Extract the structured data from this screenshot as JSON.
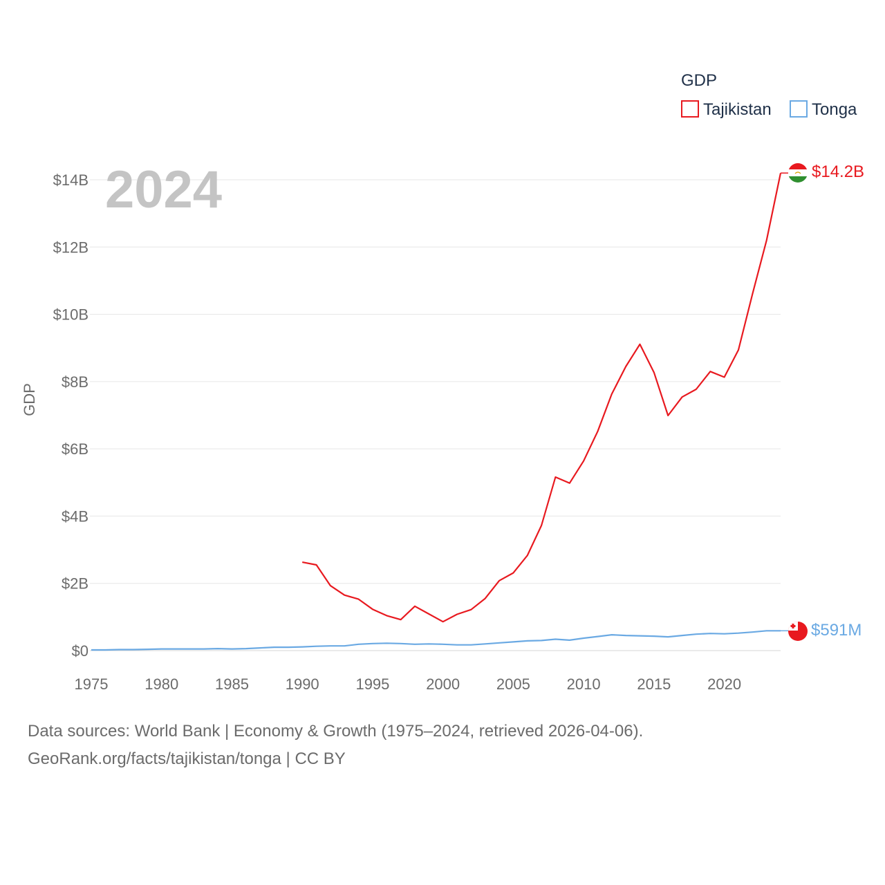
{
  "chart_data": {
    "type": "line",
    "title": "",
    "year_label": "2024",
    "ylabel": "GDP",
    "xlabel": "",
    "xlim": [
      1975,
      2024
    ],
    "ylim": [
      0,
      14
    ],
    "x_ticks": [
      "1975",
      "1980",
      "1985",
      "1990",
      "1995",
      "2000",
      "2005",
      "2010",
      "2015",
      "2020"
    ],
    "y_ticks": [
      {
        "value": 0,
        "label": "$0"
      },
      {
        "value": 2,
        "label": "$2B"
      },
      {
        "value": 4,
        "label": "$4B"
      },
      {
        "value": 6,
        "label": "$6B"
      },
      {
        "value": 8,
        "label": "$8B"
      },
      {
        "value": 10,
        "label": "$10B"
      },
      {
        "value": 12,
        "label": "$12B"
      },
      {
        "value": 14,
        "label": "$14B"
      }
    ],
    "legend": {
      "title": "GDP",
      "position": "top-right",
      "entries": [
        {
          "name": "Tajikistan",
          "color": "#e8191f"
        },
        {
          "name": "Tonga",
          "color": "#6aa9e3"
        }
      ]
    },
    "series": [
      {
        "name": "Tajikistan",
        "color": "#e8191f",
        "end_label": "$14.2B",
        "flag": "tajikistan-flag",
        "x": [
          1990,
          1991,
          1992,
          1993,
          1994,
          1995,
          1996,
          1997,
          1998,
          1999,
          2000,
          2001,
          2002,
          2003,
          2004,
          2005,
          2006,
          2007,
          2008,
          2009,
          2010,
          2011,
          2012,
          2013,
          2014,
          2015,
          2016,
          2017,
          2018,
          2019,
          2020,
          2021,
          2022,
          2023,
          2024
        ],
        "values": [
          2.63,
          2.55,
          1.93,
          1.65,
          1.53,
          1.23,
          1.04,
          0.92,
          1.32,
          1.09,
          0.86,
          1.08,
          1.22,
          1.55,
          2.08,
          2.31,
          2.83,
          3.72,
          5.16,
          4.98,
          5.64,
          6.52,
          7.63,
          8.45,
          9.11,
          8.27,
          6.99,
          7.54,
          7.77,
          8.3,
          8.13,
          8.94,
          10.6,
          12.2,
          14.2
        ]
      },
      {
        "name": "Tonga",
        "color": "#6aa9e3",
        "end_label": "$591M",
        "flag": "tonga-flag",
        "x": [
          1975,
          1976,
          1977,
          1978,
          1979,
          1980,
          1981,
          1982,
          1983,
          1984,
          1985,
          1986,
          1987,
          1988,
          1989,
          1990,
          1991,
          1992,
          1993,
          1994,
          1995,
          1996,
          1997,
          1998,
          1999,
          2000,
          2001,
          2002,
          2003,
          2004,
          2005,
          2006,
          2007,
          2008,
          2009,
          2010,
          2011,
          2012,
          2013,
          2014,
          2015,
          2016,
          2017,
          2018,
          2019,
          2020,
          2021,
          2022,
          2023,
          2024
        ],
        "values": [
          0.02,
          0.02,
          0.03,
          0.03,
          0.04,
          0.05,
          0.05,
          0.05,
          0.05,
          0.06,
          0.05,
          0.06,
          0.08,
          0.1,
          0.1,
          0.11,
          0.13,
          0.14,
          0.14,
          0.19,
          0.21,
          0.22,
          0.21,
          0.19,
          0.2,
          0.19,
          0.17,
          0.17,
          0.2,
          0.23,
          0.26,
          0.29,
          0.3,
          0.34,
          0.31,
          0.37,
          0.42,
          0.47,
          0.45,
          0.44,
          0.43,
          0.41,
          0.45,
          0.49,
          0.51,
          0.5,
          0.52,
          0.55,
          0.59,
          0.59
        ]
      }
    ]
  },
  "footer": {
    "line1": "Data sources: World Bank | Economy & Growth (1975–2024, retrieved 2026-04-06).",
    "line2": "GeoRank.org/facts/tajikistan/tonga | CC BY"
  }
}
